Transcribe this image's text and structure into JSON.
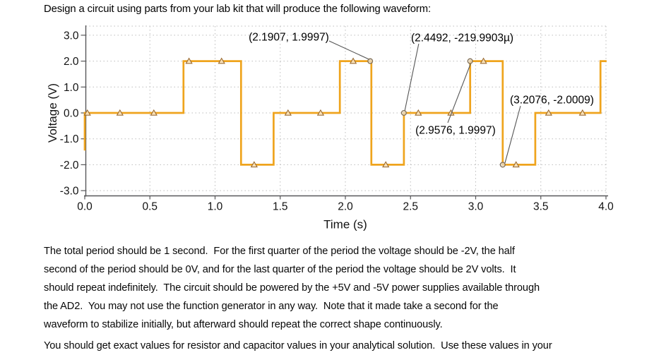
{
  "header": {
    "title": "Design a circuit using parts from your lab kit that will produce the following waveform:"
  },
  "chart_data": {
    "type": "line",
    "title": "",
    "xlabel": "Time (s)",
    "ylabel": "Voltage (V)",
    "xlim": [
      0,
      4
    ],
    "ylim": [
      -3,
      3
    ],
    "grid": true,
    "legend": "none",
    "xticks": {
      "values": [
        0,
        0.5,
        1,
        1.5,
        2,
        2.5,
        3,
        3.5,
        4
      ],
      "labels": [
        "0.0",
        "0.5",
        "1.0",
        "1.5",
        "2.0",
        "2.5",
        "3.0",
        "3.5",
        "4.0"
      ]
    },
    "yticks": {
      "values": [
        3,
        2,
        1,
        0,
        -1,
        -2,
        -3
      ],
      "labels": [
        "3.0",
        "2.0",
        "1.0",
        "0.0",
        "-1.0",
        "-2.0",
        "-3.0"
      ]
    },
    "series": [
      {
        "name": "scope-channel-waveform",
        "color": "#efa41d",
        "points": [
          [
            0,
            -1.45
          ],
          [
            0,
            0
          ],
          [
            0.7576,
            0
          ],
          [
            0.7576,
            2
          ],
          [
            1.1992,
            2
          ],
          [
            1.1992,
            -2
          ],
          [
            1.4492,
            -2
          ],
          [
            1.4492,
            0
          ],
          [
            1.9576,
            0
          ],
          [
            1.9576,
            2
          ],
          [
            2.1992,
            2
          ],
          [
            2.1992,
            -2
          ],
          [
            2.4492,
            -2
          ],
          [
            2.4492,
            0
          ],
          [
            2.9576,
            0
          ],
          [
            2.9576,
            2
          ],
          [
            3.2076,
            2
          ],
          [
            3.2076,
            -2
          ],
          [
            3.4576,
            -2
          ],
          [
            3.4576,
            0
          ],
          [
            3.9576,
            0
          ],
          [
            3.9576,
            2
          ],
          [
            4.005,
            2
          ]
        ]
      }
    ],
    "triangle_markers": [
      [
        0.02,
        0
      ],
      [
        0.27,
        0
      ],
      [
        0.53,
        0
      ],
      [
        0.8,
        2
      ],
      [
        1.05,
        2
      ],
      [
        1.3,
        -2
      ],
      [
        1.56,
        0
      ],
      [
        1.81,
        0
      ],
      [
        2.06,
        2
      ],
      [
        2.31,
        -2
      ],
      [
        2.56,
        0
      ],
      [
        2.81,
        0
      ],
      [
        3.06,
        2
      ],
      [
        3.31,
        -2
      ],
      [
        3.56,
        0
      ],
      [
        3.82,
        0
      ]
    ],
    "cursor_markers": [
      [
        2.1907,
        2
      ],
      [
        2.4492,
        0
      ],
      [
        2.9576,
        2
      ],
      [
        3.2076,
        -2
      ]
    ],
    "annotations": [
      {
        "text": "(2.1907, 1.9997)",
        "point": [
          2.1907,
          1.9997
        ],
        "label": [
          1.258,
          3.16
        ],
        "leader": [
          [
            1.875,
            2.78
          ],
          [
            2.19,
            2.05
          ]
        ]
      },
      {
        "text": "(2.4492, -219.9903µ)",
        "point": [
          2.4492,
          -0.00021999
        ],
        "label": [
          2.504,
          3.14
        ],
        "leader": [
          [
            2.563,
            2.67
          ],
          [
            2.455,
            0.06
          ]
        ]
      },
      {
        "text": "(2.9576, 1.9997)",
        "point": [
          2.9576,
          1.9997
        ],
        "label": [
          2.537,
          -0.44
        ],
        "leader": [
          [
            2.786,
            -0.38
          ],
          [
            2.961,
            1.9
          ]
        ]
      },
      {
        "text": "(3.2076, -2.0009)",
        "point": [
          3.2076,
          -2.0009
        ],
        "label": [
          3.263,
          0.74
        ],
        "leader": [
          [
            3.344,
            0.27
          ],
          [
            3.225,
            -1.93
          ]
        ]
      }
    ],
    "colors": {
      "waveform": "#efa41d",
      "grid": "#bdbdbd",
      "axis": "#58585a",
      "annotation_text": "#000000",
      "leader_line": "#555555",
      "triangle_stroke": "#9a6a30",
      "triangle_fill": "#fbe8c4",
      "cursor_stroke": "#837057",
      "cursor_fill": "#e9e2d6"
    }
  },
  "body": {
    "paragraphs": [
      {
        "lines": [
          "The total period should be 1 second.  For the first quarter of the period the voltage should be -2V, the half",
          "second of the period should be 0V, and for the last quarter of the period the voltage should be 2V volts.  It",
          "should repeat indefinitely.  The circuit should be powered by the +5V and -5V power supplies available through",
          "the AD2.  You may not use the function generator in any way.  Note that it made take a second for the",
          "waveform to stabilize initially, but afterward should repeat the correct shape continuously."
        ]
      },
      {
        "lines": [
          "You should get exact values for resistor and capacitor values in your analytical solution.  Use these values in your"
        ]
      }
    ]
  }
}
